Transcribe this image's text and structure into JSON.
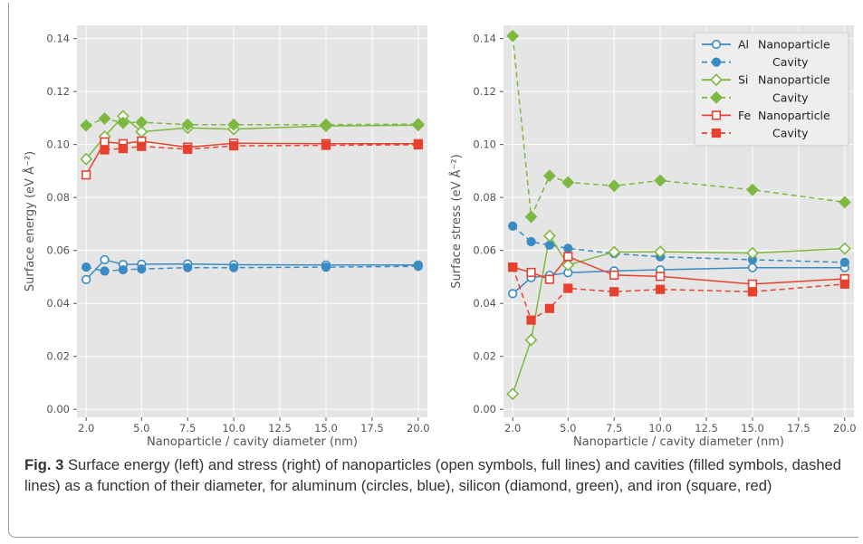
{
  "chart_data": [
    {
      "type": "line",
      "title": "",
      "xlabel": "Nanoparticle / cavity diameter (nm)",
      "ylabel": "Surface energy (eV Å⁻²)",
      "xlim": [
        1.5,
        20.5
      ],
      "ylim": [
        -0.003,
        0.145
      ],
      "x_ticks": [
        "2.0",
        "5.0",
        "7.5",
        "10.0",
        "12.5",
        "15.0",
        "17.5",
        "20.0"
      ],
      "x_tick_values": [
        2.0,
        5.0,
        7.5,
        10.0,
        12.5,
        15.0,
        17.5,
        20.0
      ],
      "y_ticks": [
        "0.00",
        "0.02",
        "0.04",
        "0.06",
        "0.08",
        "0.10",
        "0.12",
        "0.14"
      ],
      "y_tick_values": [
        0.0,
        0.02,
        0.04,
        0.06,
        0.08,
        0.1,
        0.12,
        0.14
      ],
      "grid": true,
      "x": [
        2,
        3,
        4,
        5,
        7.5,
        10,
        15,
        20
      ],
      "series": [
        {
          "name": "Al Nanoparticle",
          "values": [
            0.049,
            0.0565,
            0.0547,
            0.0548,
            0.0549,
            0.0546,
            0.0545,
            0.0545
          ]
        },
        {
          "name": "Al Cavity",
          "values": [
            0.0537,
            0.0522,
            0.0527,
            0.053,
            0.0535,
            0.0535,
            0.0537,
            0.054
          ]
        },
        {
          "name": "Si Nanoparticle",
          "values": [
            0.0945,
            0.103,
            0.1107,
            0.1048,
            0.1063,
            0.1058,
            0.107,
            0.1073
          ]
        },
        {
          "name": "Si Cavity",
          "values": [
            0.1072,
            0.1098,
            0.1082,
            0.1084,
            0.1075,
            0.1075,
            0.1075,
            0.1077
          ]
        },
        {
          "name": "Fe Nanoparticle",
          "values": [
            0.0885,
            0.101,
            0.1003,
            0.1013,
            0.099,
            0.1005,
            0.1003,
            0.1003
          ]
        },
        {
          "name": "Fe Cavity",
          "values": [
            null,
            0.098,
            0.0985,
            0.0993,
            0.0982,
            0.0995,
            0.0997,
            0.0999
          ]
        }
      ]
    },
    {
      "type": "line",
      "title": "",
      "xlabel": "Nanoparticle / cavity diameter (nm)",
      "ylabel": "Surface stress (eV Å⁻²)",
      "xlim": [
        1.5,
        20.5
      ],
      "ylim": [
        -0.003,
        0.145
      ],
      "x_ticks": [
        "2.0",
        "5.0",
        "7.5",
        "10.0",
        "12.5",
        "15.0",
        "17.5",
        "20.0"
      ],
      "x_tick_values": [
        2.0,
        5.0,
        7.5,
        10.0,
        12.5,
        15.0,
        17.5,
        20.0
      ],
      "y_ticks": [
        "0.00",
        "0.02",
        "0.04",
        "0.06",
        "0.08",
        "0.10",
        "0.12",
        "0.14"
      ],
      "y_tick_values": [
        0.0,
        0.02,
        0.04,
        0.06,
        0.08,
        0.1,
        0.12,
        0.14
      ],
      "grid": true,
      "legend_position": "top-right",
      "x": [
        2,
        3,
        4,
        5,
        7.5,
        10,
        15,
        20
      ],
      "series": [
        {
          "name": "Al Nanoparticle",
          "values": [
            0.0437,
            0.0497,
            0.0506,
            0.0516,
            0.0523,
            0.0527,
            0.0535,
            0.0535
          ]
        },
        {
          "name": "Al Cavity",
          "values": [
            0.0692,
            0.0633,
            0.062,
            0.0608,
            0.0588,
            0.0576,
            0.0565,
            0.0555
          ]
        },
        {
          "name": "Si Nanoparticle",
          "values": [
            0.0058,
            0.0262,
            0.0655,
            0.0545,
            0.0594,
            0.0595,
            0.059,
            0.0607
          ]
        },
        {
          "name": "Si Cavity",
          "values": [
            0.141,
            0.0727,
            0.0882,
            0.0857,
            0.0844,
            0.0864,
            0.0829,
            0.0782
          ]
        },
        {
          "name": "Fe Nanoparticle",
          "values": [
            0.0537,
            0.0517,
            0.0491,
            0.0577,
            0.0507,
            0.0502,
            0.0473,
            0.0493
          ]
        },
        {
          "name": "Fe Cavity",
          "values": [
            0.0537,
            0.0337,
            0.0381,
            0.0457,
            0.0444,
            0.0453,
            0.0444,
            0.0473
          ]
        }
      ]
    }
  ],
  "legend": {
    "rows": [
      {
        "element": "Al",
        "label": "Nanoparticle",
        "series": "Al Nanoparticle"
      },
      {
        "element": "",
        "label": "Cavity",
        "series": "Al Cavity"
      },
      {
        "element": "Si",
        "label": "Nanoparticle",
        "series": "Si Nanoparticle"
      },
      {
        "element": "",
        "label": "Cavity",
        "series": "Si Cavity"
      },
      {
        "element": "Fe",
        "label": "Nanoparticle",
        "series": "Fe Nanoparticle"
      },
      {
        "element": "",
        "label": "Cavity",
        "series": "Fe Cavity"
      }
    ]
  },
  "series_styles": {
    "Al Nanoparticle": {
      "color": "#3a8ac4",
      "marker": "circle",
      "filled": false,
      "dashed": false
    },
    "Al Cavity": {
      "color": "#3a8ac4",
      "marker": "circle",
      "filled": true,
      "dashed": true
    },
    "Si Nanoparticle": {
      "color": "#7db941",
      "marker": "diamond",
      "filled": false,
      "dashed": false
    },
    "Si Cavity": {
      "color": "#7db941",
      "marker": "diamond",
      "filled": true,
      "dashed": true
    },
    "Fe Nanoparticle": {
      "color": "#e8412f",
      "marker": "square",
      "filled": false,
      "dashed": false
    },
    "Fe Cavity": {
      "color": "#e8412f",
      "marker": "square",
      "filled": true,
      "dashed": true
    }
  },
  "colors": {
    "plot_background": "#e5e5e5",
    "grid": "#ffffff",
    "tick_text": "#555555",
    "caption_text": "#333333"
  },
  "caption": {
    "lead": "Fig. 3",
    "text": "Surface energy (left) and stress (right) of nanoparticles (open symbols, full lines) and cavities (filled symbols, dashed lines) as a function of their diameter, for aluminum (circles, blue), silicon (diamond, green), and iron (square, red)"
  }
}
